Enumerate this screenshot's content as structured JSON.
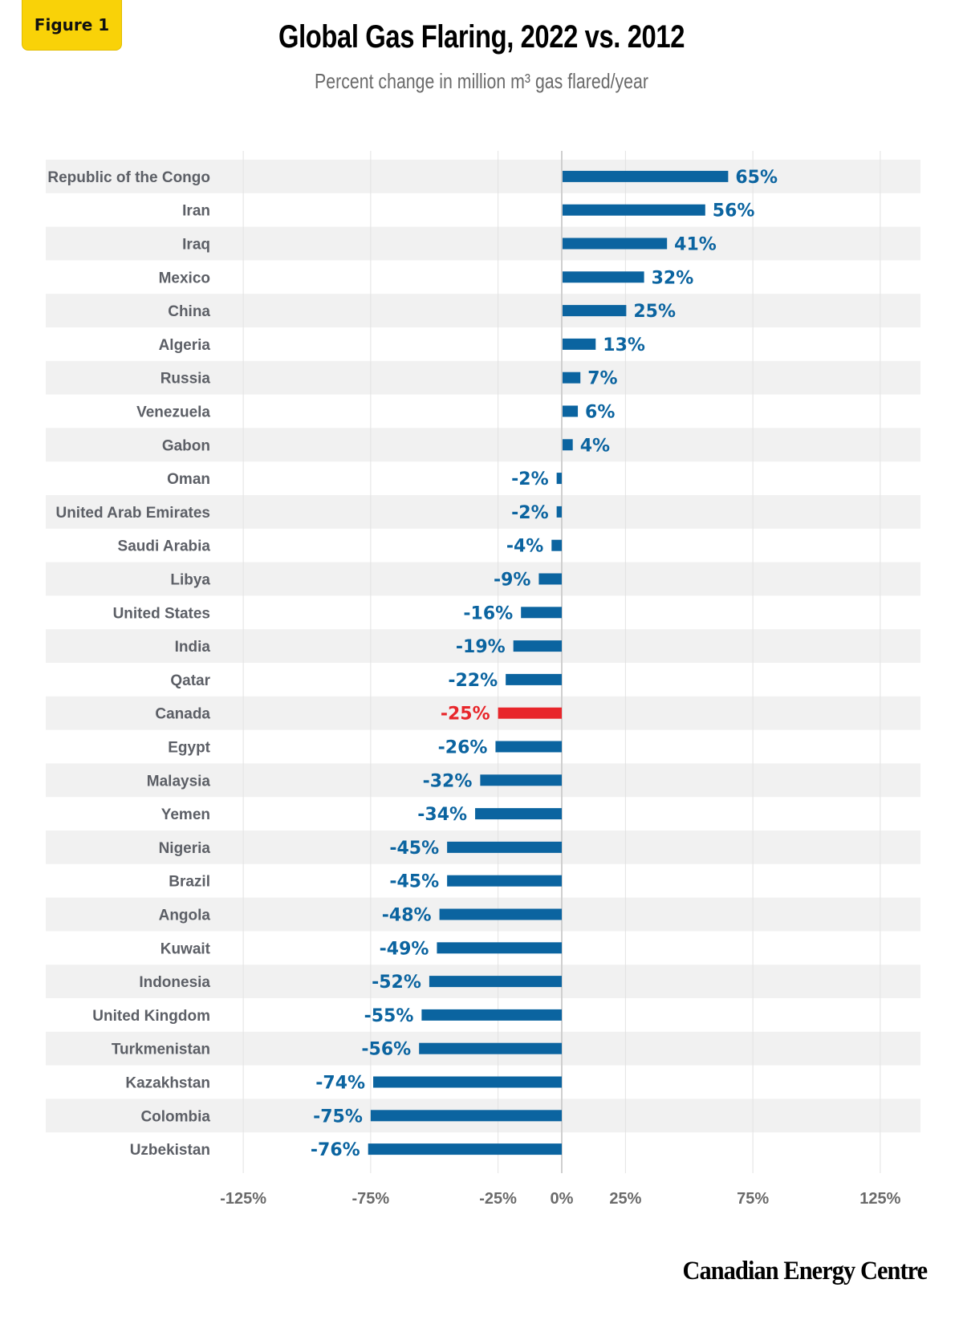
{
  "badge": {
    "label": "Figure 1"
  },
  "header": {
    "title": "Global Gas Flaring, 2022 vs. 2012",
    "subtitle": "Percent change in million m³ gas flared/year"
  },
  "footer": {
    "logo_text": "Canadian Energy Centre"
  },
  "colors": {
    "bar": "#0b64a0",
    "highlight": "#e8262b",
    "label_text": "#5c5f66",
    "value_text": "#0b64a0",
    "band": "#f1f1f1",
    "grid": "#e2e2e2",
    "zero_line": "#cfcfcf",
    "badge": "#f9d208"
  },
  "chart_data": {
    "type": "bar",
    "orientation": "horizontal",
    "title": "Global Gas Flaring, 2022 vs. 2012",
    "subtitle": "Percent change in million m³ gas flared/year",
    "xlabel": "",
    "ylabel": "",
    "xlim": [
      -125,
      125
    ],
    "grid": true,
    "x_ticks": [
      -125,
      -75,
      -25,
      0,
      25,
      75,
      125
    ],
    "x_tick_labels": [
      "-125%",
      "-75%",
      "-25%",
      "0%",
      "25%",
      "75%",
      "125%"
    ],
    "highlight": "Canada",
    "categories": [
      "Republic of the Congo",
      "Iran",
      "Iraq",
      "Mexico",
      "China",
      "Algeria",
      "Russia",
      "Venezuela",
      "Gabon",
      "Oman",
      "United Arab Emirates",
      "Saudi Arabia",
      "Libya",
      "United States",
      "India",
      "Qatar",
      "Canada",
      "Egypt",
      "Malaysia",
      "Yemen",
      "Nigeria",
      "Brazil",
      "Angola",
      "Kuwait",
      "Indonesia",
      "United Kingdom",
      "Turkmenistan",
      "Kazakhstan",
      "Colombia",
      "Uzbekistan"
    ],
    "values": [
      65,
      56,
      41,
      32,
      25,
      13,
      7,
      6,
      4,
      -2,
      -2,
      -4,
      -9,
      -16,
      -19,
      -22,
      -25,
      -26,
      -32,
      -34,
      -45,
      -45,
      -48,
      -49,
      -52,
      -55,
      -56,
      -74,
      -75,
      -76
    ],
    "value_labels": [
      "65%",
      "56%",
      "41%",
      "32%",
      "25%",
      "13%",
      "7%",
      "6%",
      "4%",
      "-2%",
      "-2%",
      "-4%",
      "-9%",
      "-16%",
      "-19%",
      "-22%",
      "-25%",
      "-26%",
      "-32%",
      "-34%",
      "-45%",
      "-45%",
      "-48%",
      "-49%",
      "-52%",
      "-55%",
      "-56%",
      "-74%",
      "-75%",
      "-76%"
    ]
  }
}
